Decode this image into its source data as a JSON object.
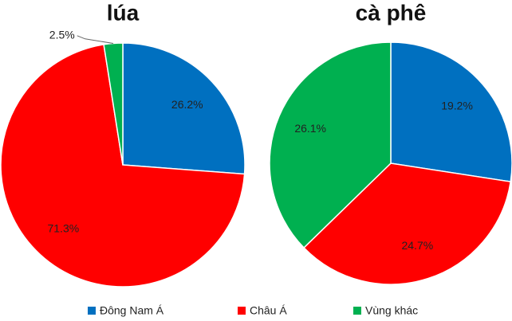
{
  "categories": [
    "Đông Nam Á",
    "Châu Á",
    "Vùng khác"
  ],
  "colors": [
    "#0070c0",
    "#ff0000",
    "#00b050"
  ],
  "chart_data": [
    {
      "type": "pie",
      "title": "lúa",
      "values": [
        26.2,
        71.3,
        2.5
      ],
      "value_labels": [
        "26.2%",
        "71.3%",
        "2.5%"
      ]
    },
    {
      "type": "pie",
      "title": "cà phê",
      "values": [
        19.2,
        24.7,
        26.1
      ],
      "value_labels": [
        "19.2%",
        "24.7%",
        "26.1%"
      ]
    }
  ]
}
